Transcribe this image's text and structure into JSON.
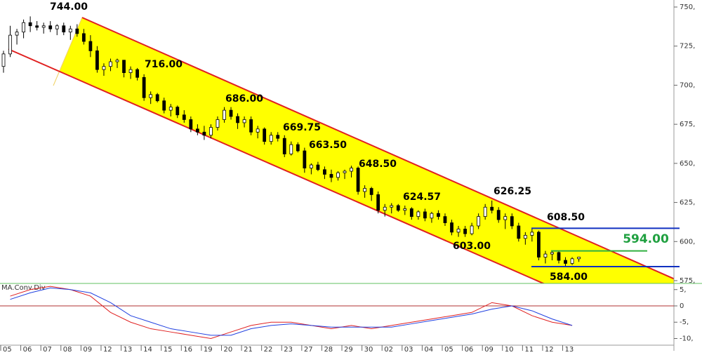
{
  "chart_data": {
    "type": "candlestick",
    "categories": [
      "05",
      "06",
      "07",
      "08",
      "09",
      "12",
      "13",
      "14",
      "15",
      "16",
      "19",
      "20",
      "21",
      "22",
      "23",
      "27",
      "28",
      "29",
      "30",
      "02",
      "03",
      "04",
      "05",
      "06",
      "09",
      "10",
      "11",
      "12",
      "13"
    ],
    "candles": [
      [
        712,
        722,
        708,
        720
      ],
      [
        720,
        738,
        718,
        732
      ],
      [
        732,
        736,
        726,
        734
      ],
      [
        734,
        742,
        730,
        740
      ],
      [
        740,
        744,
        734,
        738
      ],
      [
        738,
        741,
        735,
        737
      ],
      [
        737,
        740,
        733,
        738
      ],
      [
        738,
        741,
        734,
        736
      ],
      [
        736,
        739,
        732,
        738
      ],
      [
        738,
        740,
        732,
        734
      ],
      [
        734,
        738,
        729,
        736
      ],
      [
        736,
        739,
        731,
        733
      ],
      [
        733,
        736,
        726,
        728
      ],
      [
        728,
        732,
        718,
        722
      ],
      [
        722,
        725,
        708,
        710
      ],
      [
        710,
        714,
        706,
        712
      ],
      [
        712,
        717,
        709,
        715
      ],
      [
        715,
        717,
        711,
        716
      ],
      [
        716,
        716,
        705,
        708
      ],
      [
        708,
        712,
        704,
        710
      ],
      [
        710,
        711,
        703,
        705
      ],
      [
        705,
        707,
        690,
        692
      ],
      [
        692,
        696,
        688,
        694
      ],
      [
        694,
        695,
        689,
        690
      ],
      [
        690,
        692,
        682,
        684
      ],
      [
        684,
        688,
        680,
        686
      ],
      [
        686,
        687,
        679,
        681
      ],
      [
        681,
        684,
        676,
        678
      ],
      [
        678,
        680,
        670,
        672
      ],
      [
        672,
        675,
        668,
        670
      ],
      [
        670,
        674,
        665,
        668
      ],
      [
        668,
        675,
        666,
        673
      ],
      [
        673,
        680,
        671,
        678
      ],
      [
        678,
        686,
        676,
        684
      ],
      [
        684,
        686,
        678,
        680
      ],
      [
        680,
        682,
        672,
        676
      ],
      [
        676,
        680,
        673,
        678
      ],
      [
        678,
        680,
        668,
        670
      ],
      [
        670,
        674,
        666,
        672
      ],
      [
        672,
        673,
        662,
        664
      ],
      [
        664,
        670,
        662,
        668
      ],
      [
        668,
        670,
        664,
        666
      ],
      [
        666,
        668,
        654,
        656
      ],
      [
        656,
        664,
        655,
        662
      ],
      [
        662,
        663.5,
        657,
        658
      ],
      [
        658,
        660,
        644,
        647
      ],
      [
        647,
        650,
        643,
        649
      ],
      [
        649,
        651,
        645,
        646
      ],
      [
        646,
        648,
        640,
        643
      ],
      [
        643,
        646,
        638,
        641
      ],
      [
        641,
        645,
        639,
        644
      ],
      [
        644,
        646,
        640,
        645
      ],
      [
        645,
        648.5,
        641,
        647
      ],
      [
        647,
        648,
        630,
        632
      ],
      [
        632,
        636,
        628,
        634
      ],
      [
        634,
        635,
        626,
        630
      ],
      [
        630,
        632,
        618,
        620
      ],
      [
        620,
        624,
        616,
        622
      ],
      [
        622,
        624.57,
        618,
        623
      ],
      [
        623,
        624,
        619,
        620
      ],
      [
        620,
        623,
        617,
        621
      ],
      [
        621,
        622,
        614,
        616
      ],
      [
        616,
        620,
        614,
        619
      ],
      [
        619,
        621,
        613,
        615
      ],
      [
        615,
        619,
        612,
        618
      ],
      [
        618,
        620,
        614,
        616
      ],
      [
        616,
        618,
        610,
        612
      ],
      [
        612,
        614,
        604,
        606
      ],
      [
        606,
        610,
        603,
        608
      ],
      [
        608,
        610,
        603,
        605
      ],
      [
        605,
        612,
        604,
        610
      ],
      [
        610,
        618,
        608,
        616
      ],
      [
        616,
        624,
        614,
        622
      ],
      [
        622,
        626.25,
        618,
        620
      ],
      [
        620,
        622,
        612,
        614
      ],
      [
        614,
        618,
        608,
        616
      ],
      [
        616,
        618,
        608,
        610
      ],
      [
        610,
        612,
        600,
        602
      ],
      [
        602,
        606,
        598,
        604
      ],
      [
        604,
        608.5,
        600,
        606
      ],
      [
        606,
        607,
        588,
        590
      ],
      [
        590,
        594,
        586,
        592
      ],
      [
        592,
        594,
        588,
        593
      ],
      [
        593,
        594,
        586,
        588
      ],
      [
        588,
        590,
        584,
        586
      ],
      [
        586,
        590,
        585,
        589
      ],
      [
        589,
        590,
        587,
        590
      ]
    ],
    "ylim": [
      575,
      750
    ],
    "yticks": [
      {
        "value": 575,
        "label": "575,"
      },
      {
        "value": 600,
        "label": "600,"
      },
      {
        "value": 625,
        "label": "625,"
      },
      {
        "value": 650,
        "label": "650,"
      },
      {
        "value": 675,
        "label": "675,"
      },
      {
        "value": 700,
        "label": "700,"
      },
      {
        "value": 725,
        "label": "725,"
      },
      {
        "value": 750,
        "label": "750,"
      }
    ],
    "annotations": [
      {
        "value": 744,
        "label": "744.00"
      },
      {
        "value": 716,
        "label": "716.00"
      },
      {
        "value": 686,
        "label": "686.00"
      },
      {
        "value": 669.75,
        "label": "669.75"
      },
      {
        "value": 663.5,
        "label": "663.50"
      },
      {
        "value": 648.5,
        "label": "648.50"
      },
      {
        "value": 624.57,
        "label": "624.57"
      },
      {
        "value": 626.25,
        "label": "626.25"
      },
      {
        "value": 603,
        "label": "603.00"
      },
      {
        "value": 608.5,
        "label": "608.50"
      },
      {
        "value": 594,
        "label": "594.00"
      },
      {
        "value": 584,
        "label": "584.00"
      }
    ],
    "indicator": {
      "title": "MA.Conv.Div",
      "ylim": [
        -11.5,
        7
      ],
      "yticks": [
        {
          "value": 5,
          "label": "5,"
        },
        0,
        {
          "value": -5,
          "label": "-5,"
        },
        {
          "value": -10,
          "label": "-10,"
        }
      ],
      "series": [
        {
          "color": "#e02020",
          "values": [
            3,
            5,
            6,
            5,
            3,
            -2,
            -5,
            -7,
            -8,
            -9,
            -10,
            -8,
            -6,
            -5,
            -5,
            -6,
            -7,
            -6,
            -7,
            -6,
            -5,
            -4,
            -3,
            -2,
            1,
            0,
            -3,
            -5,
            -6
          ]
        },
        {
          "color": "#2040e0",
          "values": [
            2,
            4,
            5.5,
            5,
            4,
            1,
            -3,
            -5,
            -7,
            -8,
            -9,
            -9,
            -7,
            -6,
            -5.5,
            -6,
            -6.5,
            -6.5,
            -6.5,
            -6.5,
            -5.5,
            -4.5,
            -3.5,
            -2.5,
            -1,
            0,
            -1.5,
            -4,
            -6
          ]
        }
      ]
    }
  }
}
